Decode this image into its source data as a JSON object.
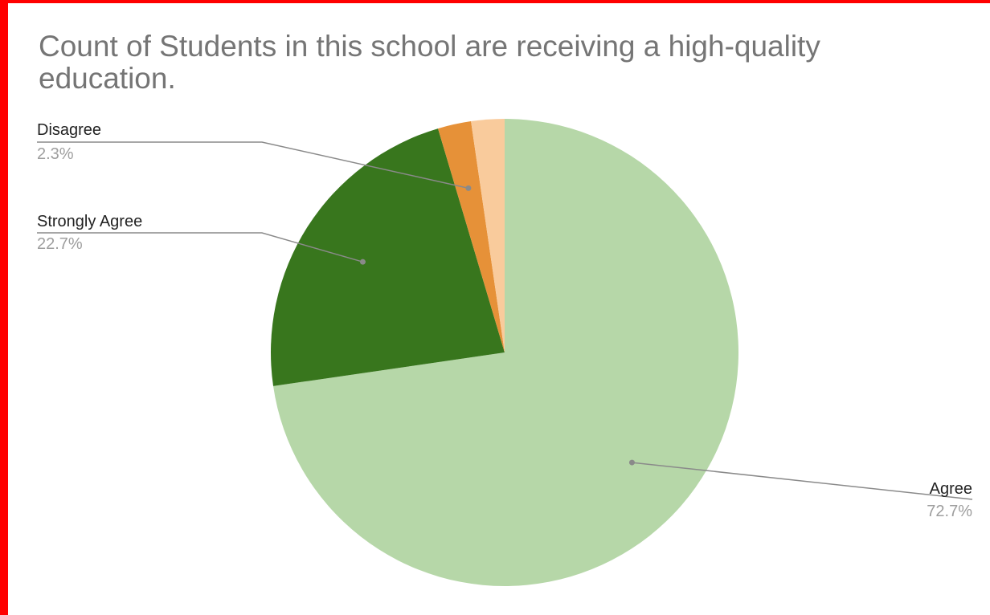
{
  "chart_data": {
    "type": "pie",
    "title": "Count of Students in this school are receiving a high-quality education.",
    "slices": [
      {
        "label": "Agree",
        "value": 72.7,
        "value_label": "72.7%",
        "color": "#b6d7a8",
        "show_label": true
      },
      {
        "label": "Strongly Agree",
        "value": 22.7,
        "value_label": "22.7%",
        "color": "#38761d",
        "show_label": true
      },
      {
        "label": "Disagree",
        "value": 2.3,
        "value_label": "2.3%",
        "color": "#e69138",
        "show_label": true
      },
      {
        "label": "",
        "value": 2.3,
        "value_label": "",
        "color": "#f9cb9c",
        "show_label": false
      }
    ],
    "start": "12 o'clock",
    "direction": "clockwise",
    "legend": "none",
    "label_style": "callouts with leader lines"
  },
  "colors": {
    "frame_border": "#ff0000",
    "title": "#757575",
    "label_name": "#222222",
    "label_percent": "#9e9e9e",
    "leader_line": "#8a8a8a"
  }
}
